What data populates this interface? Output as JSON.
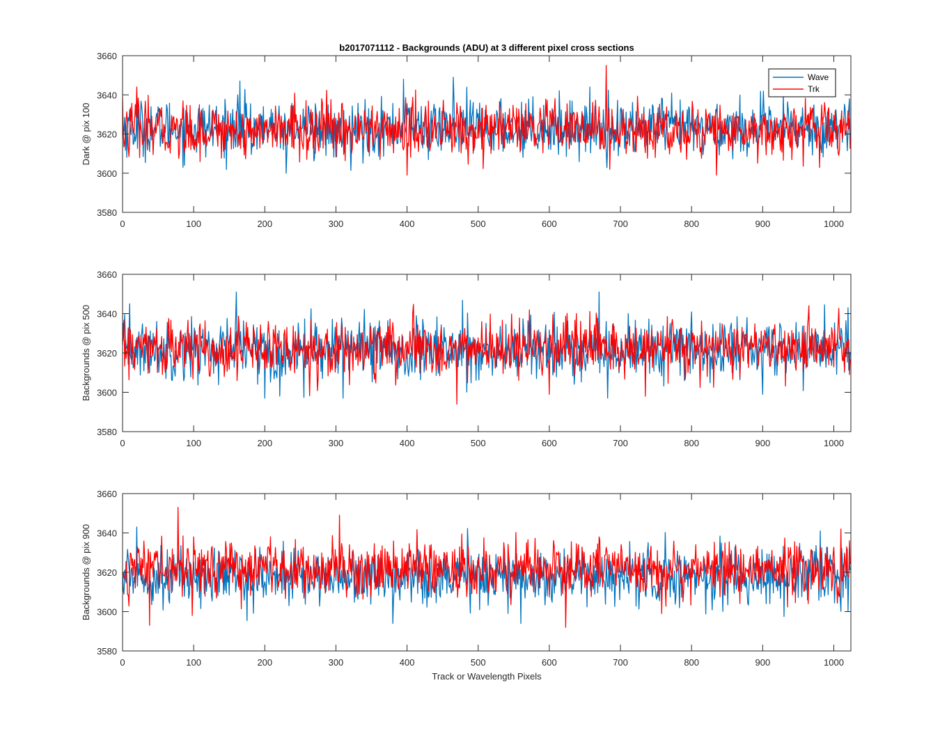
{
  "figure": {
    "title": "b2017071112 - Backgrounds (ADU) at 3 different pixel cross sections",
    "xlabel": "Track or Wavelength Pixels"
  },
  "colors": {
    "wave": "#0072BD",
    "trk": "#FF0000",
    "axis": "#262626",
    "background": "#FFFFFF"
  },
  "legend": {
    "placement": "top-right of first subplot",
    "entries": [
      "Wave",
      "Trk"
    ]
  },
  "chart_data": [
    {
      "type": "line",
      "ylabel": "Dark @ pix 100",
      "xlim": [
        0,
        1024
      ],
      "ylim": [
        3580,
        3660
      ],
      "xticks": [
        0,
        100,
        200,
        300,
        400,
        500,
        600,
        700,
        800,
        900,
        1000
      ],
      "yticks": [
        3580,
        3600,
        3620,
        3640,
        3660
      ],
      "grid": false,
      "legend": true,
      "n_points": 1024,
      "series": [
        {
          "name": "Wave",
          "color": "#0072BD",
          "mean": 3623,
          "std": 7,
          "min": 3600,
          "max": 3649,
          "notable_points": [
            [
              0,
              3624
            ],
            [
              165,
              3647
            ],
            [
              230,
              3600
            ],
            [
              395,
              3648
            ],
            [
              465,
              3649
            ],
            [
              1022,
              3638
            ]
          ]
        },
        {
          "name": "Trk",
          "color": "#FF0000",
          "mean": 3622,
          "std": 7,
          "min": 3599,
          "max": 3655,
          "notable_points": [
            [
              0,
              3639
            ],
            [
              20,
              3644
            ],
            [
              400,
              3599
            ],
            [
              680,
              3655
            ],
            [
              685,
              3602
            ],
            [
              835,
              3599
            ],
            [
              1022,
              3628
            ]
          ]
        }
      ]
    },
    {
      "type": "line",
      "ylabel": "Backgrounds @ pix 500",
      "xlim": [
        0,
        1024
      ],
      "ylim": [
        3580,
        3660
      ],
      "xticks": [
        0,
        100,
        200,
        300,
        400,
        500,
        600,
        700,
        800,
        900,
        1000
      ],
      "yticks": [
        3580,
        3600,
        3620,
        3640,
        3660
      ],
      "grid": false,
      "legend": false,
      "n_points": 1024,
      "series": [
        {
          "name": "Wave",
          "color": "#0072BD",
          "mean": 3622,
          "std": 7.5,
          "min": 3597,
          "max": 3651,
          "notable_points": [
            [
              10,
              3645
            ],
            [
              160,
              3651
            ],
            [
              200,
              3597
            ],
            [
              310,
              3597
            ],
            [
              670,
              3651
            ],
            [
              900,
              3599
            ],
            [
              1020,
              3643
            ]
          ]
        },
        {
          "name": "Trk",
          "color": "#FF0000",
          "mean": 3622,
          "std": 7,
          "min": 3594,
          "max": 3646,
          "notable_points": [
            [
              470,
              3594
            ],
            [
              600,
              3599
            ],
            [
              735,
              3598
            ],
            [
              965,
              3644
            ],
            [
              1022,
              3609
            ]
          ]
        }
      ]
    },
    {
      "type": "line",
      "ylabel": "Backgrounds @ pix 900",
      "xlim": [
        0,
        1024
      ],
      "ylim": [
        3580,
        3660
      ],
      "xticks": [
        0,
        100,
        200,
        300,
        400,
        500,
        600,
        700,
        800,
        900,
        1000
      ],
      "yticks": [
        3580,
        3600,
        3620,
        3640,
        3660
      ],
      "grid": false,
      "legend": false,
      "n_points": 1024,
      "series": [
        {
          "name": "Wave",
          "color": "#0072BD",
          "mean": 3618,
          "std": 7,
          "min": 3593,
          "max": 3643,
          "notable_points": [
            [
              20,
              3643
            ],
            [
              380,
              3594
            ],
            [
              560,
              3594
            ],
            [
              1020,
              3600
            ]
          ]
        },
        {
          "name": "Trk",
          "color": "#FF0000",
          "mean": 3622,
          "std": 7,
          "min": 3592,
          "max": 3653,
          "notable_points": [
            [
              38,
              3593
            ],
            [
              78,
              3653
            ],
            [
              305,
              3649
            ],
            [
              623,
              3592
            ],
            [
              1010,
              3642
            ],
            [
              1022,
              3636
            ]
          ]
        }
      ]
    }
  ]
}
